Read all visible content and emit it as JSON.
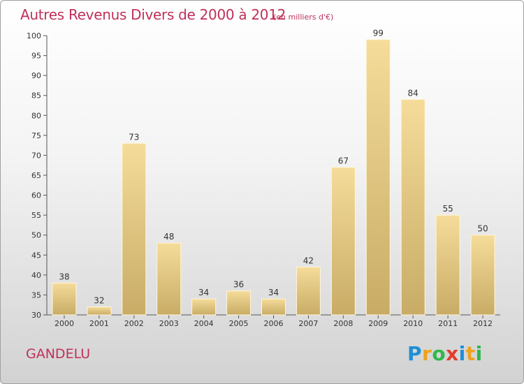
{
  "title": "Autres Revenus Divers de 2000 à 2012",
  "unit": "(en milliers d'€)",
  "location": "GANDELU",
  "brand": "Proxiti",
  "colors": {
    "title": "#c0305a",
    "bar_light": "#f5dc9a",
    "bar_dark": "#c8ac66",
    "logo": [
      "#1e8fd6",
      "#f0a21b",
      "#2fb84a",
      "#e23c2e",
      "#1e8fd6",
      "#f0a21b",
      "#2fb84a"
    ]
  },
  "chart_data": {
    "type": "bar",
    "categories": [
      "2000",
      "2001",
      "2002",
      "2003",
      "2004",
      "2005",
      "2006",
      "2007",
      "2008",
      "2009",
      "2010",
      "2011",
      "2012"
    ],
    "values": [
      38,
      32,
      73,
      48,
      34,
      36,
      34,
      42,
      67,
      99,
      84,
      55,
      50
    ],
    "ylim": [
      30,
      100
    ],
    "yticks": [
      30,
      35,
      40,
      45,
      50,
      55,
      60,
      65,
      70,
      75,
      80,
      85,
      90,
      95,
      100
    ],
    "grid": false,
    "legend": "none"
  }
}
